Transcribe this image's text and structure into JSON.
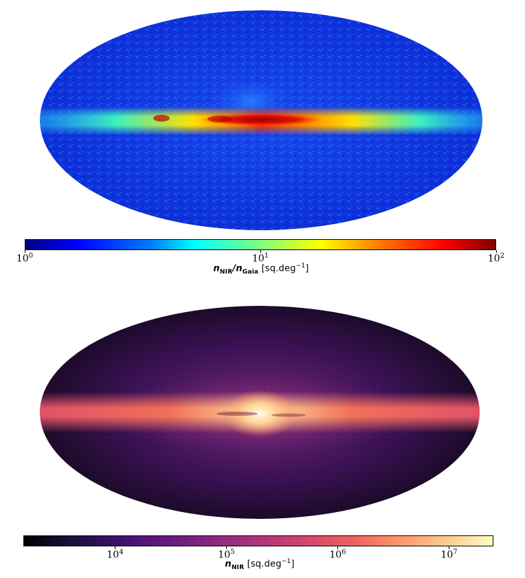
{
  "chart_data": [
    {
      "type": "heatmap",
      "projection": "Mollweide all-sky",
      "colormap": "jet",
      "scale": "log",
      "colorbar": {
        "range": [
          1,
          100
        ],
        "ticks": [
          {
            "value": 1,
            "base": "10",
            "exp": "0"
          },
          {
            "value": 10,
            "base": "10",
            "exp": "1"
          },
          {
            "value": 100,
            "base": "10",
            "exp": "2"
          }
        ],
        "label": {
          "symbol1": "n",
          "sub1": "NIR",
          "sep": "/",
          "symbol2": "n",
          "sub2": "Gaia",
          "unit_prefix": " [sq.deg",
          "unit_exp": "−1",
          "unit_suffix": "]"
        }
      },
      "description_colors": {
        "background": "#0a2fd8",
        "plane": "#ffd400",
        "bulge": "#a80000"
      }
    },
    {
      "type": "heatmap",
      "projection": "Mollweide all-sky",
      "colormap": "magma",
      "scale": "log",
      "colorbar": {
        "range": [
          1500,
          25000000
        ],
        "ticks": [
          {
            "value": 10000,
            "base": "10",
            "exp": "4"
          },
          {
            "value": 100000,
            "base": "10",
            "exp": "5"
          },
          {
            "value": 1000000,
            "base": "10",
            "exp": "6"
          },
          {
            "value": 10000000,
            "base": "10",
            "exp": "7"
          }
        ],
        "label": {
          "symbol1": "n",
          "sub1": "NIR",
          "unit_prefix": " [sq.deg",
          "unit_exp": "−1",
          "unit_suffix": "]"
        }
      },
      "description_colors": {
        "background": "#3a1250",
        "plane": "#ff8a5a",
        "bulge": "#fff0c8"
      }
    }
  ]
}
